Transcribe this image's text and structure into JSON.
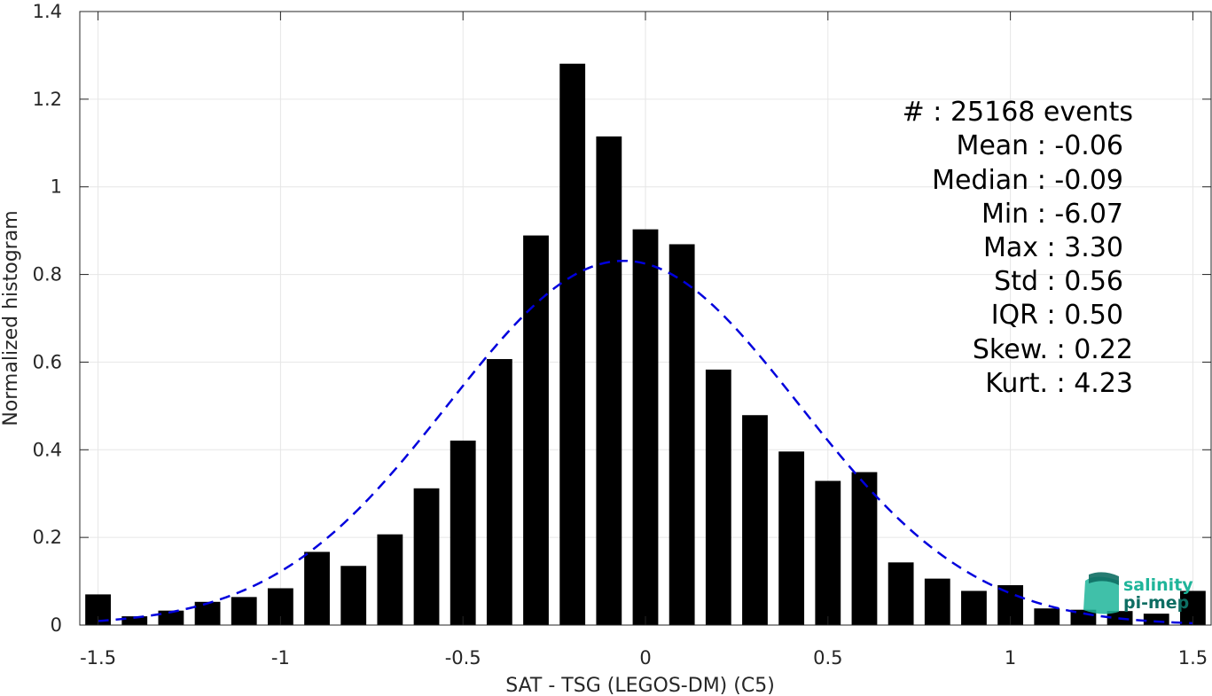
{
  "chart_data": {
    "type": "bar",
    "xlabel": "SAT - TSG (LEGOS-DM) (C5)",
    "ylabel": "Normalized histogram",
    "xlim": [
      -1.55,
      1.55
    ],
    "ylim": [
      0,
      1.4
    ],
    "grid": true,
    "xticks": [
      -1.5,
      -1,
      -0.5,
      0,
      0.5,
      1,
      1.5
    ],
    "xtick_labels": [
      "-1.5",
      "-1",
      "-0.5",
      "0",
      "0.5",
      "1",
      "1.5"
    ],
    "yticks": [
      0,
      0.2,
      0.4,
      0.6,
      0.8,
      1,
      1.2,
      1.4
    ],
    "ytick_labels": [
      "0",
      "0.2",
      "0.4",
      "0.6",
      "0.8",
      "1",
      "1.2",
      "1.4"
    ],
    "bin_width": 0.1,
    "bar_width": 0.07,
    "series": [
      {
        "type": "bar",
        "color": "#000000",
        "x": [
          -1.5,
          -1.4,
          -1.3,
          -1.2,
          -1.1,
          -1.0,
          -0.9,
          -0.8,
          -0.7,
          -0.6,
          -0.5,
          -0.4,
          -0.3,
          -0.2,
          -0.1,
          0.0,
          0.1,
          0.2,
          0.3,
          0.4,
          0.5,
          0.6,
          0.7,
          0.8,
          0.9,
          1.0,
          1.1,
          1.2,
          1.3,
          1.4,
          1.5
        ],
        "values": [
          0.07,
          0.02,
          0.033,
          0.053,
          0.064,
          0.084,
          0.167,
          0.135,
          0.207,
          0.312,
          0.421,
          0.607,
          0.889,
          1.281,
          1.115,
          0.903,
          0.869,
          0.583,
          0.479,
          0.396,
          0.329,
          0.349,
          0.143,
          0.106,
          0.078,
          0.091,
          0.038,
          0.035,
          0.032,
          0.026,
          0.078
        ]
      },
      {
        "type": "normal-fit",
        "style": "dashed",
        "color": "#0000dd",
        "mean": -0.06,
        "std": 0.48,
        "x_range": [
          -1.5,
          1.5
        ]
      }
    ],
    "annotations": [
      "#  : 25168 events",
      "Mean : -0.06",
      "Median : -0.09",
      "Min : -6.07",
      "Max : 3.30",
      "Std : 0.56",
      "IQR : 0.50",
      "Skew. : 0.22",
      "Kurt. : 4.23"
    ]
  },
  "logo": {
    "line1": "salinity",
    "line2": "pi-mep",
    "color1": "#1fb59a",
    "color2": "#0e6e63"
  }
}
